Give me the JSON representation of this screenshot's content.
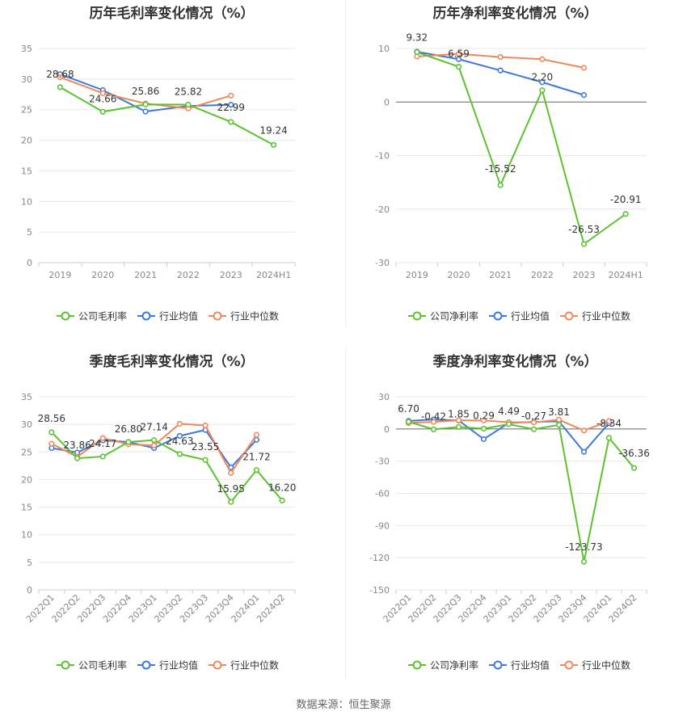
{
  "source": "数据来源：恒生聚源",
  "colors": {
    "company": "#5cc230",
    "industry_avg": "#3d78dc",
    "industry_median": "#f0895a"
  },
  "chart_data": [
    {
      "type": "line",
      "title": "历年毛利率变化情况（%）",
      "categories": [
        "2019",
        "2020",
        "2021",
        "2022",
        "2023",
        "2024H1"
      ],
      "ylim": [
        0,
        35
      ],
      "yticks": [
        0,
        5,
        10,
        15,
        20,
        25,
        30,
        35
      ],
      "grid": true,
      "legend_position": "bottom",
      "series": [
        {
          "name": "公司毛利率",
          "values": [
            28.68,
            24.66,
            25.86,
            25.82,
            22.99,
            19.24
          ],
          "labels": [
            "28.68",
            "24.66",
            "25.86",
            "25.82",
            "22.99",
            "19.24"
          ]
        },
        {
          "name": "行业均值",
          "values": [
            30.8,
            28.2,
            24.7,
            25.6,
            25.8,
            null
          ]
        },
        {
          "name": "行业中位数",
          "values": [
            30.3,
            27.7,
            26.0,
            25.2,
            27.3,
            null
          ]
        }
      ]
    },
    {
      "type": "line",
      "title": "历年净利率变化情况（%）",
      "categories": [
        "2019",
        "2020",
        "2021",
        "2022",
        "2023",
        "2024H1"
      ],
      "ylim": [
        -30,
        10
      ],
      "yticks": [
        -30,
        -20,
        -10,
        0,
        10
      ],
      "grid": true,
      "legend_position": "bottom",
      "series": [
        {
          "name": "公司净利率",
          "values": [
            9.32,
            6.59,
            -15.52,
            2.2,
            -26.53,
            -20.91
          ],
          "labels": [
            "9.32",
            "6.59",
            "-15.52",
            "2.20",
            "-26.53",
            "-20.91"
          ]
        },
        {
          "name": "行业均值",
          "values": [
            9.4,
            8.0,
            5.9,
            3.7,
            1.3,
            null
          ]
        },
        {
          "name": "行业中位数",
          "values": [
            8.5,
            9.0,
            8.4,
            8.0,
            6.4,
            null
          ]
        }
      ]
    },
    {
      "type": "line",
      "title": "季度毛利率变化情况（%）",
      "categories": [
        "2022Q1",
        "2022Q2",
        "2022Q3",
        "2022Q4",
        "2023Q1",
        "2023Q2",
        "2023Q3",
        "2023Q4",
        "2024Q1",
        "2024Q2"
      ],
      "ylim": [
        0,
        35
      ],
      "yticks": [
        0,
        5,
        10,
        15,
        20,
        25,
        30,
        35
      ],
      "grid": true,
      "legend_position": "bottom",
      "series": [
        {
          "name": "公司毛利率",
          "values": [
            28.56,
            23.86,
            24.17,
            26.8,
            27.14,
            24.63,
            23.55,
            15.95,
            21.72,
            16.2
          ],
          "labels": [
            "28.56",
            "23.86",
            "24.17",
            "26.80",
            "27.14",
            "24.63",
            "23.55",
            "15.95",
            "21.72",
            "16.20"
          ]
        },
        {
          "name": "行业均值",
          "values": [
            25.7,
            24.9,
            27.1,
            26.8,
            25.7,
            27.9,
            29.0,
            22.2,
            27.2,
            null
          ]
        },
        {
          "name": "行业中位数",
          "values": [
            26.5,
            24.1,
            27.5,
            26.4,
            26.2,
            30.1,
            29.8,
            21.2,
            28.1,
            null
          ]
        }
      ]
    },
    {
      "type": "line",
      "title": "季度净利率变化情况（%）",
      "categories": [
        "2022Q1",
        "2022Q2",
        "2022Q3",
        "2022Q4",
        "2023Q1",
        "2023Q2",
        "2023Q3",
        "2023Q4",
        "2024Q1",
        "2024Q2"
      ],
      "ylim": [
        -150,
        30
      ],
      "yticks": [
        -150,
        -120,
        -90,
        -60,
        -30,
        0,
        30
      ],
      "grid": true,
      "legend_position": "bottom",
      "series": [
        {
          "name": "公司净利率",
          "values": [
            6.7,
            -0.42,
            1.85,
            0.29,
            4.49,
            -0.27,
            3.81,
            -123.73,
            -8.34,
            -36.36
          ],
          "labels": [
            "6.70",
            "-0.42",
            "1.85",
            "0.29",
            "4.49",
            "-0.27",
            "3.81",
            "-123.73",
            "-8.34",
            "-36.36"
          ]
        },
        {
          "name": "行业均值",
          "values": [
            7.5,
            8.8,
            7.9,
            -9.5,
            5.6,
            6.6,
            7.1,
            -21.3,
            5.4,
            null
          ]
        },
        {
          "name": "行业中位数",
          "values": [
            5.6,
            6.6,
            8.1,
            7.9,
            6.3,
            6.1,
            8.6,
            -1.5,
            7.3,
            null
          ]
        }
      ]
    }
  ]
}
